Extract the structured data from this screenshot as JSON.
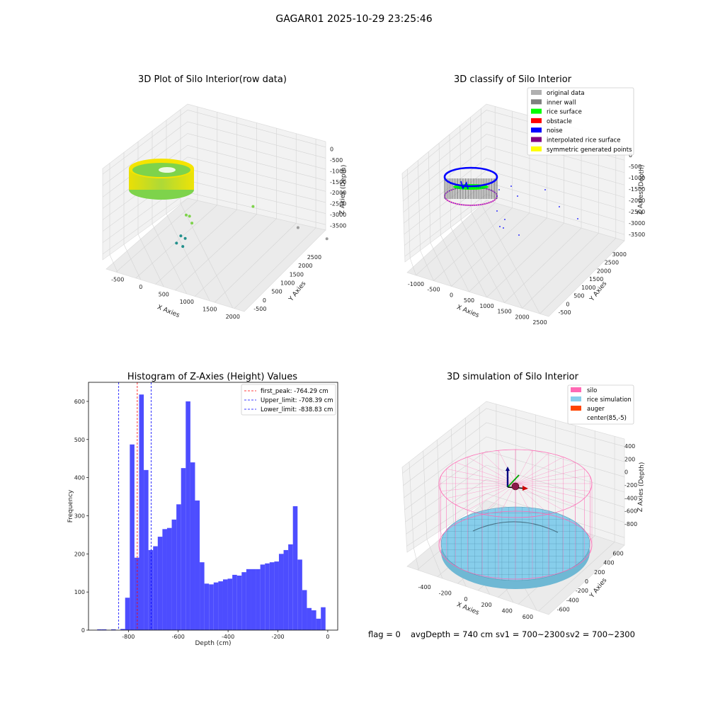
{
  "figure": {
    "suptitle": "GAGAR01 2025-10-29 23:25:46",
    "footer": {
      "flag": "flag = 0",
      "avg_depth": "avgDepth = 740 cm",
      "sv1": "sv1 = 700~2300",
      "sv2": "sv2 = 700~2300"
    }
  },
  "chart_data": [
    {
      "type": "scatter",
      "title": "3D Plot of Silo Interior(row data)",
      "xlabel": "X Axies",
      "ylabel": "Y Axies",
      "zlabel": "Z Axies (Depth)",
      "x_ticks": [
        "-500",
        "0",
        "500",
        "1000",
        "1500",
        "2000"
      ],
      "y_ticks": [
        "-500",
        "0",
        "500",
        "1000",
        "1500",
        "2000",
        "2500"
      ],
      "z_ticks": [
        "0",
        "-500",
        "-1000",
        "-1500",
        "-2000",
        "-2500",
        "-3000",
        "-3500"
      ],
      "colors": {
        "top": "#f5e400",
        "mid": "#7ed34b",
        "low": "#22908c",
        "far": "#9a9a9a"
      },
      "outliers": [
        {
          "x": 280,
          "y": 300,
          "z": -1600
        },
        {
          "x": 300,
          "y": 400,
          "z": -1700
        },
        {
          "x": 350,
          "y": 350,
          "z": -1900
        },
        {
          "x": 950,
          "y": 1400,
          "z": -1500
        },
        {
          "x": 1500,
          "y": 1800,
          "z": -2200
        },
        {
          "x": 1900,
          "y": 1900,
          "z": -2400
        },
        {
          "x": 200,
          "y": 300,
          "z": -2500
        },
        {
          "x": 250,
          "y": 350,
          "z": -2600
        },
        {
          "x": 150,
          "y": 250,
          "z": -2800
        },
        {
          "x": 200,
          "y": 400,
          "z": -3000
        }
      ]
    },
    {
      "type": "scatter",
      "title": "3D classify of Silo Interior",
      "xlabel": "X Axies",
      "ylabel": "Y Axies",
      "zlabel": "Z Axies (Depth)",
      "x_ticks": [
        "-1000",
        "-500",
        "0",
        "500",
        "1000",
        "1500",
        "2000",
        "2500"
      ],
      "y_ticks": [
        "-500",
        "0",
        "500",
        "1000",
        "1500",
        "2000",
        "2500",
        "3000"
      ],
      "z_ticks": [
        "0",
        "-500",
        "-1000",
        "-1500",
        "-2000",
        "-2500",
        "-3000",
        "-3500"
      ],
      "legend": [
        {
          "label": "original data",
          "color": "#b0b0b0"
        },
        {
          "label": "inner wall",
          "color": "#808080"
        },
        {
          "label": "rice surface",
          "color": "#00ff00"
        },
        {
          "label": "obstacle",
          "color": "#ff0000"
        },
        {
          "label": "noise",
          "color": "#0000ff"
        },
        {
          "label": "interpolated rice surface",
          "color": "#800080"
        },
        {
          "label": "symmetric generated points",
          "color": "#ffff00"
        }
      ],
      "legend_position": "upper-right"
    },
    {
      "type": "bar",
      "title": "Histogram of Z-Axies (Height) Values",
      "xlabel": "Depth (cm)",
      "ylabel": "Frequency",
      "xlim": [
        -960,
        40
      ],
      "ylim": [
        0,
        650
      ],
      "x_ticks": [
        -800,
        -600,
        -400,
        -200,
        0
      ],
      "y_ticks": [
        0,
        100,
        200,
        300,
        400,
        500,
        600
      ],
      "bar_color": "#4d4dff",
      "bin_width": 18.7,
      "bins": [
        {
          "start": -925.2,
          "value": 2
        },
        {
          "start": -906.5,
          "value": 2
        },
        {
          "start": -887.8,
          "value": 0
        },
        {
          "start": -869.1,
          "value": 2
        },
        {
          "start": -850.4,
          "value": 0
        },
        {
          "start": -831.7,
          "value": 3
        },
        {
          "start": -813.0,
          "value": 85
        },
        {
          "start": -794.3,
          "value": 487
        },
        {
          "start": -775.6,
          "value": 190
        },
        {
          "start": -756.9,
          "value": 618
        },
        {
          "start": -738.2,
          "value": 420
        },
        {
          "start": -719.5,
          "value": 210
        },
        {
          "start": -700.8,
          "value": 220
        },
        {
          "start": -682.1,
          "value": 245
        },
        {
          "start": -663.4,
          "value": 265
        },
        {
          "start": -644.7,
          "value": 268
        },
        {
          "start": -626.0,
          "value": 290
        },
        {
          "start": -607.3,
          "value": 330
        },
        {
          "start": -588.6,
          "value": 425
        },
        {
          "start": -569.9,
          "value": 600
        },
        {
          "start": -551.2,
          "value": 440
        },
        {
          "start": -532.5,
          "value": 340
        },
        {
          "start": -513.8,
          "value": 178
        },
        {
          "start": -495.1,
          "value": 122
        },
        {
          "start": -476.4,
          "value": 120
        },
        {
          "start": -457.7,
          "value": 125
        },
        {
          "start": -439.0,
          "value": 128
        },
        {
          "start": -420.3,
          "value": 133
        },
        {
          "start": -401.6,
          "value": 135
        },
        {
          "start": -382.9,
          "value": 145
        },
        {
          "start": -364.2,
          "value": 143
        },
        {
          "start": -345.5,
          "value": 152
        },
        {
          "start": -326.8,
          "value": 160
        },
        {
          "start": -308.1,
          "value": 160
        },
        {
          "start": -289.4,
          "value": 160
        },
        {
          "start": -270.7,
          "value": 172
        },
        {
          "start": -252.0,
          "value": 175
        },
        {
          "start": -233.3,
          "value": 178
        },
        {
          "start": -214.6,
          "value": 180
        },
        {
          "start": -195.9,
          "value": 200
        },
        {
          "start": -177.2,
          "value": 210
        },
        {
          "start": -158.5,
          "value": 225
        },
        {
          "start": -139.8,
          "value": 325
        },
        {
          "start": -121.1,
          "value": 185
        },
        {
          "start": -102.4,
          "value": 105
        },
        {
          "start": -83.7,
          "value": 58
        },
        {
          "start": -65.0,
          "value": 52
        },
        {
          "start": -46.3,
          "value": 30
        },
        {
          "start": -27.6,
          "value": 60
        }
      ],
      "reference_lines": [
        {
          "label": "first_peak: -764.29 cm",
          "x": -764.29,
          "color": "#ff0000",
          "style": "dashed"
        },
        {
          "label": "Upper_limit: -708.39 cm",
          "x": -708.39,
          "color": "#0000ff",
          "style": "dashed"
        },
        {
          "label": "Lower_limit: -838.83 cm",
          "x": -838.83,
          "color": "#0000ff",
          "style": "dashed"
        }
      ],
      "legend_position": "upper-right"
    },
    {
      "type": "scatter",
      "title": "3D simulation of Silo Interior",
      "xlabel": "X Axies",
      "ylabel": "Y Axies",
      "zlabel": "Z Axies (Depth)",
      "x_ticks": [
        "-400",
        "-200",
        "0",
        "200",
        "400",
        "600"
      ],
      "y_ticks": [
        "-600",
        "-400",
        "-200",
        "0",
        "200",
        "400",
        "600"
      ],
      "z_ticks": [
        "400",
        "200",
        "0",
        "-200",
        "-400",
        "-600",
        "-800"
      ],
      "legend": [
        {
          "label": "silo",
          "color": "#ff69b4"
        },
        {
          "label": "rice simulation",
          "color": "#87ceeb"
        },
        {
          "label": "auger",
          "color": "#ff4500"
        },
        {
          "label": "center(85,-5)",
          "color": ""
        }
      ],
      "legend_position": "upper-right",
      "center": [
        85,
        -5
      ]
    }
  ]
}
